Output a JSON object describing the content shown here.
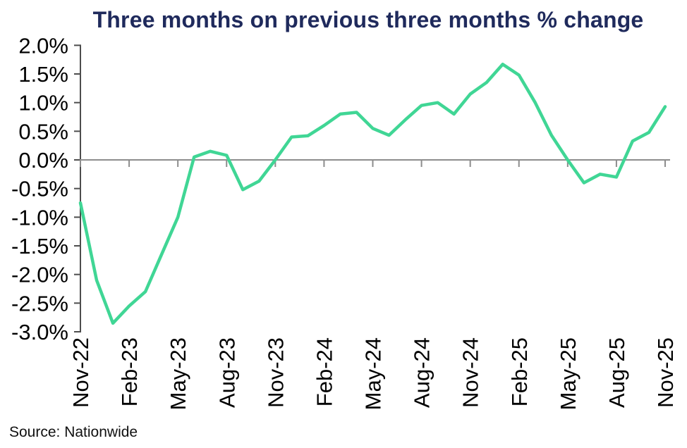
{
  "title": "Three months on previous three months % change",
  "source": "Source: Nationwide",
  "colors": {
    "title": "#1f2a5c",
    "line": "#40d695",
    "zero_axis": "#8d8d8d",
    "y_axis": "#4d4d4d",
    "axis_text": "#000000",
    "source_text": "#111111"
  },
  "chart_data": {
    "type": "line",
    "title": "Three months on previous three months % change",
    "series_name": "3 months on previous 3 months % change",
    "x": [
      "Nov-22",
      "Dec-22",
      "Jan-23",
      "Feb-23",
      "Mar-23",
      "Apr-23",
      "May-23",
      "Jun-23",
      "Jul-23",
      "Aug-23",
      "Sep-23",
      "Oct-23",
      "Nov-23",
      "Dec-23",
      "Jan-24",
      "Feb-24",
      "Mar-24",
      "Apr-24",
      "May-24",
      "Jun-24",
      "Jul-24",
      "Aug-24",
      "Sep-24",
      "Oct-24",
      "Nov-24",
      "Dec-24",
      "Jan-25",
      "Feb-25",
      "Mar-25",
      "Apr-25",
      "May-25",
      "Jun-25",
      "Jul-25",
      "Aug-25",
      "Sep-25",
      "Oct-25",
      "Nov-25"
    ],
    "values": [
      -0.75,
      -2.1,
      -2.85,
      -2.55,
      -2.3,
      -1.65,
      -1.0,
      0.05,
      0.15,
      0.08,
      -0.52,
      -0.37,
      0.0,
      0.4,
      0.42,
      0.6,
      0.8,
      0.83,
      0.55,
      0.43,
      0.7,
      0.95,
      1.0,
      0.8,
      1.15,
      1.35,
      1.67,
      1.48,
      1.0,
      0.43,
      0.0,
      -0.4,
      -0.25,
      -0.3,
      0.33,
      0.48,
      0.93
    ],
    "x_tick_every": 3,
    "x_tick_labels": [
      "Nov-22",
      "Feb-23",
      "May-23",
      "Aug-23",
      "Nov-23",
      "Feb-24",
      "May-24",
      "Aug-24",
      "Nov-24",
      "Feb-25",
      "May-25",
      "Aug-25",
      "Nov-25"
    ],
    "y_ticks": [
      2.0,
      1.5,
      1.0,
      0.5,
      0.0,
      -0.5,
      -1.0,
      -1.5,
      -2.0,
      -2.5,
      -3.0
    ],
    "y_tick_labels": [
      "2.0%",
      "1.5%",
      "1.0%",
      "0.5%",
      "0.0%",
      "-0.5%",
      "-1.0%",
      "-1.5%",
      "-2.0%",
      "-2.5%",
      "-3.0%"
    ],
    "ylim": [
      -3.0,
      2.0
    ],
    "grid": false,
    "legend": "none",
    "xlabel": "",
    "ylabel": ""
  }
}
